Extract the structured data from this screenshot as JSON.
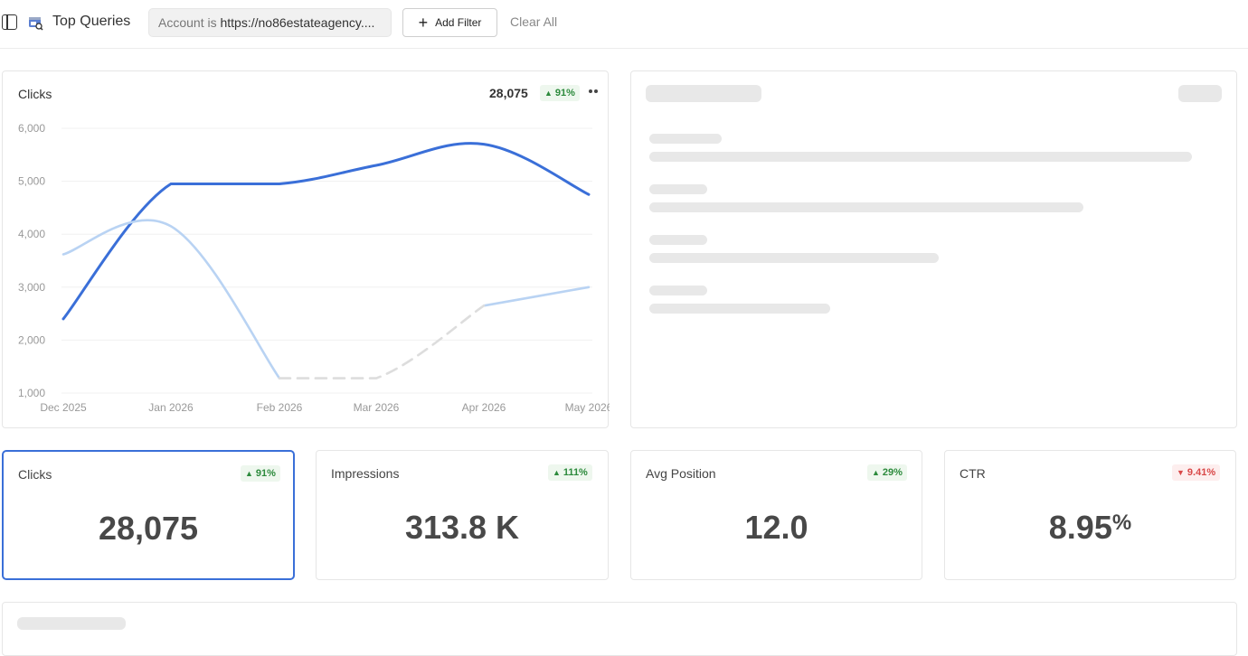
{
  "header": {
    "title": "Top Queries",
    "filter": {
      "key": "Account is",
      "value": "https://no86estateagency...."
    },
    "add_filter_label": "Add Filter",
    "clear_all_label": "Clear All"
  },
  "chart": {
    "title": "Clicks",
    "total": "28,075",
    "change": "91%",
    "change_direction": "up"
  },
  "chart_data": {
    "type": "line",
    "x": [
      "Dec 2025",
      "Jan 2026",
      "Feb 2026",
      "Mar 2026",
      "Apr 2026",
      "May 2026"
    ],
    "ylim": [
      1000,
      6000
    ],
    "y_ticks": [
      "6,000",
      "5,000",
      "4,000",
      "3,000",
      "2,000",
      "1,000"
    ],
    "grid": true,
    "series": [
      {
        "values": [
          2400,
          4950,
          4950,
          5300,
          5700,
          4750
        ],
        "color": "#3a6fd8"
      },
      {
        "values": [
          3620,
          4150,
          1280,
          null,
          2650,
          3000
        ],
        "color": "#b9d3f3"
      },
      {
        "values": [
          null,
          null,
          1280,
          1280,
          2650,
          null
        ],
        "color": "#dddddd",
        "dashed": true
      }
    ]
  },
  "kpis": [
    {
      "label": "Clicks",
      "value": "28,075",
      "change": "91%",
      "direction": "up",
      "active": true
    },
    {
      "label": "Impressions",
      "value": "313.8 K",
      "change": "111%",
      "direction": "up"
    },
    {
      "label": "Avg Position",
      "value": "12.0",
      "change": "29%",
      "direction": "up"
    },
    {
      "label": "CTR",
      "value": "8.95",
      "unit": "%",
      "change": "9.41%",
      "direction": "down"
    }
  ],
  "colors": {
    "accent": "#3a6fd8",
    "up": "#2c8a3c",
    "down": "#d94848"
  }
}
